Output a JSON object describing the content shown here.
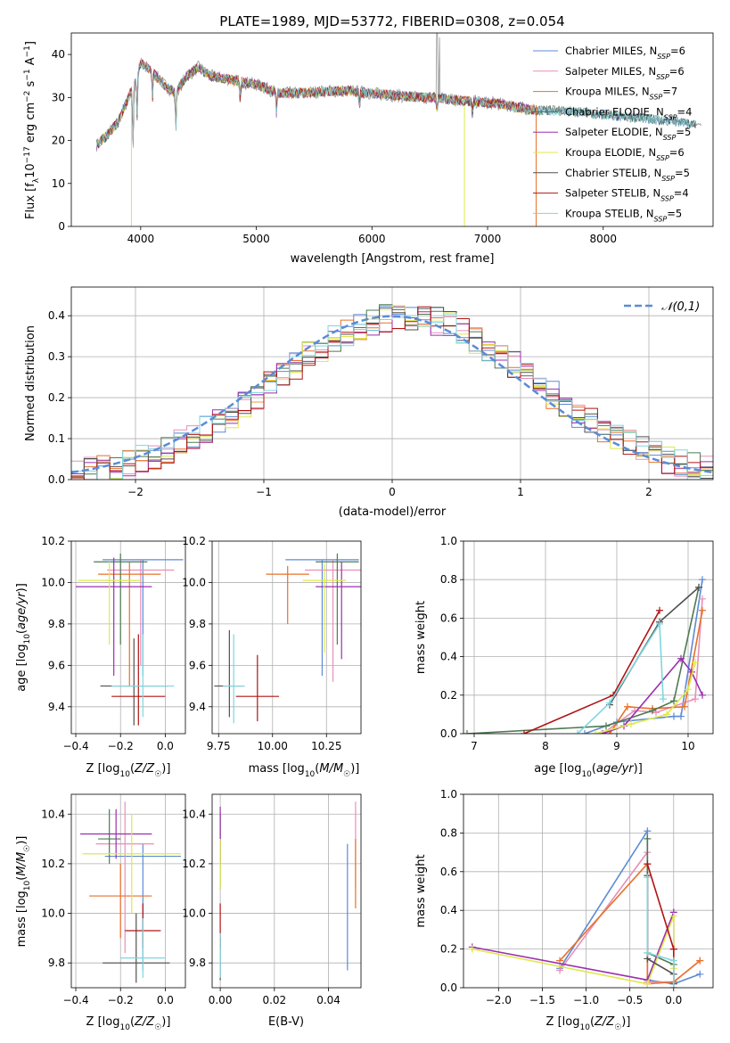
{
  "figure": {
    "title": "PLATE=1989, MJD=53772, FIBERID=0308, z=0.054"
  },
  "series_colors": {
    "Chabrier MILES": "#5b8bd6",
    "Salpeter MILES": "#e88fb8",
    "Kroupa MILES": "#e8702a",
    "Chabrier ELODIE": "#4f7a52",
    "Salpeter ELODIE": "#9b2fae",
    "Kroupa ELODIE": "#dfe84a",
    "Chabrier STELIB": "#505050",
    "Salpeter STELIB": "#b01414",
    "Kroupa STELIB": "#7fd6de"
  },
  "chart_data": [
    {
      "id": "spectrum",
      "type": "line",
      "xlabel": "wavelength [Angstrom, rest frame]",
      "ylabel": "Flux [f_λ10^-17 erg cm^-2 s^-1 A^-1]",
      "xlim": [
        3400,
        8950
      ],
      "ylim": [
        0,
        45
      ],
      "xticks": [
        4000,
        5000,
        6000,
        7000,
        8000
      ],
      "yticks": [
        0,
        10,
        20,
        30,
        40
      ],
      "grid": false,
      "legend_position": "top-right",
      "data_color": "#999999",
      "legend": [
        {
          "label": "Chabrier MILES, N_SSP=6",
          "color": "#5b8bd6"
        },
        {
          "label": "Salpeter MILES, N_SSP=6",
          "color": "#e88fb8"
        },
        {
          "label": "Kroupa MILES, N_SSP=7",
          "color": "#e8702a"
        },
        {
          "label": "Chabrier ELODIE, N_SSP=4",
          "color": "#4f7a52"
        },
        {
          "label": "Salpeter ELODIE, N_SSP=5",
          "color": "#9b2fae"
        },
        {
          "label": "Kroupa ELODIE, N_SSP=6",
          "color": "#dfe84a"
        },
        {
          "label": "Chabrier STELIB, N_SSP=5",
          "color": "#505050"
        },
        {
          "label": "Salpeter STELIB, N_SSP=4",
          "color": "#b01414"
        },
        {
          "label": "Kroupa STELIB, N_SSP=5",
          "color": "#7fd6de"
        }
      ],
      "anchors": [
        [
          3620,
          19
        ],
        [
          3700,
          21
        ],
        [
          3800,
          24
        ],
        [
          3880,
          29
        ],
        [
          3940,
          33
        ],
        [
          4000,
          38
        ],
        [
          4100,
          36
        ],
        [
          4200,
          33
        ],
        [
          4300,
          31
        ],
        [
          4400,
          35
        ],
        [
          4500,
          37
        ],
        [
          4600,
          35
        ],
        [
          4800,
          34
        ],
        [
          5000,
          33
        ],
        [
          5200,
          31
        ],
        [
          5400,
          31
        ],
        [
          5600,
          31.5
        ],
        [
          5800,
          31.5
        ],
        [
          6000,
          31
        ],
        [
          6200,
          30.5
        ],
        [
          6400,
          30
        ],
        [
          6560,
          30
        ],
        [
          6700,
          29.5
        ],
        [
          6900,
          29
        ],
        [
          7100,
          28.5
        ],
        [
          7300,
          27.5
        ],
        [
          7450,
          27
        ],
        [
          7600,
          27
        ],
        [
          7800,
          26.5
        ],
        [
          8000,
          26
        ],
        [
          8200,
          25.5
        ],
        [
          8400,
          25
        ],
        [
          8600,
          24.5
        ],
        [
          8800,
          23.5
        ]
      ]
    },
    {
      "id": "residuals",
      "type": "histogram",
      "xlabel": "(data-model)/error",
      "ylabel": "Normed distribution",
      "xlim": [
        -2.5,
        2.5
      ],
      "ylim": [
        0,
        0.47
      ],
      "xticks": [
        -2,
        -1,
        0,
        1,
        2
      ],
      "yticks": [
        0.0,
        0.1,
        0.2,
        0.3,
        0.4
      ],
      "grid": true,
      "bin_width": 0.1,
      "legend_position": "top-right",
      "reference_curve": {
        "label": "𝒩(0,1)",
        "color": "#5b8bd6",
        "style": "dashed"
      }
    },
    {
      "id": "age_vs_Z",
      "type": "errorbar",
      "xlabel": "Z [log10(Z/Z☉)]",
      "ylabel": "age  [log10(age/yr)]",
      "xlim": [
        -0.42,
        0.09
      ],
      "ylim": [
        9.27,
        10.2
      ],
      "xticks": [
        -0.4,
        -0.2,
        0.0
      ],
      "yticks": [
        9.4,
        9.6,
        9.8,
        10.0,
        10.2
      ],
      "grid": true,
      "points": [
        {
          "s": "Chabrier MILES",
          "x": -0.1,
          "y": 10.11,
          "xerr": 0.18,
          "ylo": 9.55,
          "yhi": 10.11
        },
        {
          "s": "Salpeter MILES",
          "x": -0.11,
          "y": 10.06,
          "xerr": 0.15,
          "ylo": 9.6,
          "yhi": 10.11
        },
        {
          "s": "Kroupa MILES",
          "x": -0.16,
          "y": 10.04,
          "xerr": 0.14,
          "ylo": 9.5,
          "yhi": 10.1
        },
        {
          "s": "Chabrier ELODIE",
          "x": -0.2,
          "y": 10.1,
          "xerr": 0.12,
          "ylo": 9.7,
          "yhi": 10.14
        },
        {
          "s": "Salpeter ELODIE",
          "x": -0.23,
          "y": 9.98,
          "xerr": 0.17,
          "ylo": 9.55,
          "yhi": 10.12
        },
        {
          "s": "Kroupa ELODIE",
          "x": -0.25,
          "y": 10.01,
          "xerr": 0.14,
          "ylo": 9.7,
          "yhi": 10.1
        },
        {
          "s": "Chabrier STELIB",
          "x": -0.14,
          "y": 9.5,
          "xerr": 0.15,
          "ylo": 9.31,
          "yhi": 9.73
        },
        {
          "s": "Salpeter STELIB",
          "x": -0.12,
          "y": 9.45,
          "xerr": 0.12,
          "ylo": 9.31,
          "yhi": 9.75
        },
        {
          "s": "Kroupa STELIB",
          "x": -0.1,
          "y": 9.5,
          "xerr": 0.14,
          "ylo": 9.35,
          "yhi": 9.75
        }
      ]
    },
    {
      "id": "age_vs_mass",
      "type": "errorbar",
      "xlabel": "mass [log10(M/M☉)]",
      "ylabel": "",
      "xlim": [
        9.72,
        10.41
      ],
      "ylim": [
        9.27,
        10.2
      ],
      "xticks": [
        9.75,
        10.0,
        10.25
      ],
      "yticks": [
        9.4,
        9.6,
        9.8,
        10.0,
        10.2
      ],
      "grid": true,
      "points": [
        {
          "s": "Chabrier MILES",
          "x": 10.23,
          "y": 10.11,
          "xerr": 0.17,
          "ylo": 9.55,
          "yhi": 10.11
        },
        {
          "s": "Salpeter MILES",
          "x": 10.28,
          "y": 10.06,
          "xerr": 0.13,
          "ylo": 9.52,
          "yhi": 10.11
        },
        {
          "s": "Kroupa MILES",
          "x": 10.07,
          "y": 10.04,
          "xerr": 0.1,
          "ylo": 9.8,
          "yhi": 10.08
        },
        {
          "s": "Chabrier ELODIE",
          "x": 10.3,
          "y": 10.1,
          "xerr": 0.1,
          "ylo": 9.7,
          "yhi": 10.14
        },
        {
          "s": "Salpeter ELODIE",
          "x": 10.32,
          "y": 9.98,
          "xerr": 0.12,
          "ylo": 9.63,
          "yhi": 10.1
        },
        {
          "s": "Kroupa ELODIE",
          "x": 10.24,
          "y": 10.01,
          "xerr": 0.1,
          "ylo": 9.66,
          "yhi": 10.09
        },
        {
          "s": "Chabrier STELIB",
          "x": 9.8,
          "y": 9.5,
          "xerr": 0.07,
          "ylo": 9.35,
          "yhi": 9.77
        },
        {
          "s": "Salpeter STELIB",
          "x": 9.93,
          "y": 9.45,
          "xerr": 0.1,
          "ylo": 9.33,
          "yhi": 9.65
        },
        {
          "s": "Kroupa STELIB",
          "x": 9.82,
          "y": 9.5,
          "xerr": 0.05,
          "ylo": 9.32,
          "yhi": 9.75
        }
      ]
    },
    {
      "id": "mass_weight_vs_age",
      "type": "line",
      "xlabel": "age  [log10(age/yr)]",
      "ylabel": "mass weight",
      "xlim": [
        6.85,
        10.35
      ],
      "ylim": [
        0,
        1.0
      ],
      "xticks": [
        7,
        8,
        9,
        10
      ],
      "yticks": [
        0.0,
        0.2,
        0.4,
        0.6,
        0.8,
        1.0
      ],
      "grid": true,
      "series": [
        {
          "name": "Chabrier MILES",
          "points": [
            [
              8.55,
              0.0
            ],
            [
              9.0,
              0.06
            ],
            [
              9.8,
              0.09
            ],
            [
              9.9,
              0.09
            ],
            [
              10.2,
              0.8
            ]
          ]
        },
        {
          "name": "Salpeter MILES",
          "points": [
            [
              8.8,
              0.0
            ],
            [
              9.25,
              0.12
            ],
            [
              9.55,
              0.11
            ],
            [
              10.1,
              0.18
            ],
            [
              10.2,
              0.7
            ]
          ]
        },
        {
          "name": "Kroupa MILES",
          "points": [
            [
              8.9,
              0.0
            ],
            [
              9.15,
              0.14
            ],
            [
              9.5,
              0.13
            ],
            [
              9.95,
              0.14
            ],
            [
              10.2,
              0.64
            ]
          ]
        },
        {
          "name": "Chabrier ELODIE",
          "points": [
            [
              6.9,
              0.0
            ],
            [
              8.85,
              0.04
            ],
            [
              9.5,
              0.12
            ],
            [
              9.8,
              0.17
            ],
            [
              10.15,
              0.76
            ]
          ]
        },
        {
          "name": "Salpeter ELODIE",
          "points": [
            [
              8.8,
              0.0
            ],
            [
              9.1,
              0.04
            ],
            [
              9.9,
              0.39
            ],
            [
              10.05,
              0.32
            ],
            [
              10.2,
              0.2
            ]
          ]
        },
        {
          "name": "Kroupa ELODIE",
          "points": [
            [
              8.7,
              0.0
            ],
            [
              9.2,
              0.05
            ],
            [
              9.7,
              0.1
            ],
            [
              10.0,
              0.23
            ],
            [
              10.1,
              0.37
            ]
          ]
        },
        {
          "name": "Chabrier STELIB",
          "points": [
            [
              8.9,
              0.15
            ],
            [
              9.6,
              0.58
            ],
            [
              10.15,
              0.76
            ]
          ]
        },
        {
          "name": "Salpeter STELIB",
          "points": [
            [
              7.7,
              0.0
            ],
            [
              8.95,
              0.2
            ],
            [
              9.6,
              0.64
            ]
          ]
        },
        {
          "name": "Kroupa STELIB",
          "points": [
            [
              8.45,
              0.0
            ],
            [
              8.9,
              0.16
            ],
            [
              9.6,
              0.57
            ],
            [
              9.65,
              0.18
            ]
          ]
        }
      ]
    },
    {
      "id": "mass_vs_Z",
      "type": "errorbar",
      "xlabel": "Z [log10(Z/Z☉)]",
      "ylabel": "mass [log10(M/M☉)]",
      "xlim": [
        -0.42,
        0.09
      ],
      "ylim": [
        9.7,
        10.48
      ],
      "xticks": [
        -0.4,
        -0.2,
        0.0
      ],
      "yticks": [
        9.8,
        10.0,
        10.2,
        10.4
      ],
      "grid": true,
      "points": [
        {
          "s": "Chabrier MILES",
          "x": -0.1,
          "y": 10.23,
          "xerr": 0.17,
          "ylo": 9.77,
          "yhi": 10.28
        },
        {
          "s": "Salpeter MILES",
          "x": -0.18,
          "y": 10.28,
          "xerr": 0.13,
          "ylo": 9.84,
          "yhi": 10.45
        },
        {
          "s": "Kroupa MILES",
          "x": -0.2,
          "y": 10.07,
          "xerr": 0.14,
          "ylo": 9.9,
          "yhi": 10.2
        },
        {
          "s": "Chabrier ELODIE",
          "x": -0.25,
          "y": 10.3,
          "xerr": 0.05,
          "ylo": 10.2,
          "yhi": 10.42
        },
        {
          "s": "Salpeter ELODIE",
          "x": -0.22,
          "y": 10.32,
          "xerr": 0.16,
          "ylo": 10.22,
          "yhi": 10.42
        },
        {
          "s": "Kroupa ELODIE",
          "x": -0.15,
          "y": 10.24,
          "xerr": 0.22,
          "ylo": 10.0,
          "yhi": 10.4
        },
        {
          "s": "Chabrier STELIB",
          "x": -0.13,
          "y": 9.8,
          "xerr": 0.15,
          "ylo": 9.72,
          "yhi": 10.0
        },
        {
          "s": "Salpeter STELIB",
          "x": -0.1,
          "y": 9.93,
          "xerr": 0.08,
          "ylo": 9.86,
          "yhi": 10.04
        },
        {
          "s": "Kroupa STELIB",
          "x": -0.1,
          "y": 9.82,
          "xerr": 0.1,
          "ylo": 9.74,
          "yhi": 9.98
        }
      ]
    },
    {
      "id": "mass_vs_EBV",
      "type": "errorbar",
      "xlabel": "E(B-V)",
      "ylabel": "",
      "xlim": [
        -0.003,
        0.052
      ],
      "ylim": [
        9.7,
        10.48
      ],
      "xticks": [
        0.0,
        0.02,
        0.04
      ],
      "yticks": [
        9.8,
        10.0,
        10.2,
        10.4
      ],
      "grid": true,
      "points": [
        {
          "s": "Chabrier MILES",
          "x": 0.047,
          "y": 10.23,
          "xerr": 0,
          "ylo": 9.77,
          "yhi": 10.28
        },
        {
          "s": "Salpeter MILES",
          "x": 0.05,
          "y": 10.28,
          "xerr": 0,
          "ylo": 10.1,
          "yhi": 10.45
        },
        {
          "s": "Kroupa MILES",
          "x": 0.05,
          "y": 10.07,
          "xerr": 0,
          "ylo": 10.02,
          "yhi": 10.3
        },
        {
          "s": "Chabrier ELODIE",
          "x": 0.0,
          "y": 10.3,
          "xerr": 0,
          "ylo": 10.1,
          "yhi": 10.4
        },
        {
          "s": "Salpeter ELODIE",
          "x": 0.0,
          "y": 10.32,
          "xerr": 0,
          "ylo": 10.2,
          "yhi": 10.43
        },
        {
          "s": "Kroupa ELODIE",
          "x": 0.0,
          "y": 10.24,
          "xerr": 0,
          "ylo": 10.1,
          "yhi": 10.3
        },
        {
          "s": "Chabrier STELIB",
          "x": 0.0,
          "y": 9.8,
          "xerr": 0,
          "ylo": 9.73,
          "yhi": 9.9
        },
        {
          "s": "Salpeter STELIB",
          "x": 0.0,
          "y": 9.93,
          "xerr": 0,
          "ylo": 9.86,
          "yhi": 10.04
        },
        {
          "s": "Kroupa STELIB",
          "x": 0.0,
          "y": 9.82,
          "xerr": 0,
          "ylo": 9.74,
          "yhi": 9.92
        }
      ]
    },
    {
      "id": "mass_weight_vs_Z",
      "type": "line",
      "xlabel": "Z [log10(Z/Z☉)]",
      "ylabel": "mass weight",
      "xlim": [
        -2.4,
        0.45
      ],
      "ylim": [
        0,
        1.0
      ],
      "xticks": [
        -2.0,
        -1.5,
        -1.0,
        -0.5,
        0.0
      ],
      "yticks": [
        0.0,
        0.2,
        0.4,
        0.6,
        0.8,
        1.0
      ],
      "grid": true,
      "series": [
        {
          "name": "Chabrier MILES",
          "points": [
            [
              -1.3,
              0.1
            ],
            [
              -0.3,
              0.81
            ],
            [
              -0.3,
              0.04
            ],
            [
              0.0,
              0.02
            ],
            [
              0.3,
              0.07
            ]
          ]
        },
        {
          "name": "Salpeter MILES",
          "points": [
            [
              -1.3,
              0.09
            ],
            [
              -0.3,
              0.7
            ],
            [
              -0.3,
              0.03
            ],
            [
              0.0,
              0.03
            ],
            [
              0.3,
              0.14
            ]
          ]
        },
        {
          "name": "Kroupa MILES",
          "points": [
            [
              -1.3,
              0.14
            ],
            [
              -0.3,
              0.64
            ],
            [
              -0.3,
              0.02
            ],
            [
              0.0,
              0.03
            ],
            [
              0.3,
              0.14
            ]
          ]
        },
        {
          "name": "Chabrier ELODIE",
          "points": [
            [
              -0.3,
              0.77
            ],
            [
              -0.3,
              0.18
            ],
            [
              0.0,
              0.12
            ],
            [
              0.0,
              0.02
            ]
          ]
        },
        {
          "name": "Salpeter ELODIE",
          "points": [
            [
              -2.3,
              0.21
            ],
            [
              -0.3,
              0.04
            ],
            [
              0.0,
              0.39
            ],
            [
              0.0,
              0.2
            ]
          ]
        },
        {
          "name": "Kroupa ELODIE",
          "points": [
            [
              -2.3,
              0.2
            ],
            [
              -0.3,
              0.02
            ],
            [
              0.0,
              0.37
            ],
            [
              0.0,
              0.1
            ]
          ]
        },
        {
          "name": "Chabrier STELIB",
          "points": [
            [
              -0.3,
              0.58
            ],
            [
              -0.3,
              0.15
            ],
            [
              0.0,
              0.07
            ]
          ]
        },
        {
          "name": "Salpeter STELIB",
          "points": [
            [
              -0.3,
              0.64
            ],
            [
              0.0,
              0.2
            ],
            [
              0.0,
              0.0
            ]
          ]
        },
        {
          "name": "Kroupa STELIB",
          "points": [
            [
              -0.3,
              0.57
            ],
            [
              -0.3,
              0.18
            ],
            [
              0.0,
              0.14
            ],
            [
              0.0,
              0.0
            ]
          ]
        }
      ]
    }
  ]
}
